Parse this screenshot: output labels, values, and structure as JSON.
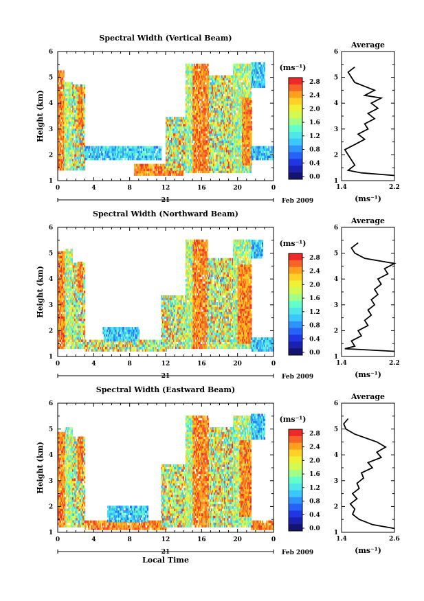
{
  "chart_data": [
    {
      "type": "heatmap",
      "title": "Spectral Width (Vertical Beam)",
      "ylabel": "Height (km)",
      "yticks": [
        "1",
        "2",
        "3",
        "4",
        "5",
        "6"
      ],
      "ylim": [
        1,
        6
      ],
      "xticks": [
        "0",
        "4",
        "8",
        "12",
        "16",
        "20",
        "0"
      ],
      "xlim": [
        0,
        24
      ],
      "date_day": "21",
      "date_month": "Feb 2009",
      "colorbar_unit": "(ms⁻¹)",
      "colorbar_ticks": [
        "2.8",
        "2.4",
        "2.0",
        "1.6",
        "1.2",
        "0.8",
        "0.4",
        "0.0"
      ],
      "colorbar_range": [
        0.0,
        3.0
      ],
      "data_top_km": 5.5,
      "data_bottom_km": 1.2,
      "regions": [
        {
          "t0": 0,
          "t1": 0.7,
          "h0": 1.4,
          "h1": 5.2,
          "level": "high"
        },
        {
          "t0": 0.7,
          "t1": 1.6,
          "h0": 1.4,
          "h1": 4.8,
          "level": "mid"
        },
        {
          "t0": 1.6,
          "t1": 3.0,
          "h0": 1.4,
          "h1": 4.7,
          "level": "mixed"
        },
        {
          "t0": 2.2,
          "t1": 2.7,
          "h0": 3.0,
          "h1": 4.6,
          "level": "high"
        },
        {
          "t0": 3.0,
          "t1": 11.5,
          "h0": 1.8,
          "h1": 2.3,
          "level": "low"
        },
        {
          "t0": 8.5,
          "t1": 14.0,
          "h0": 1.2,
          "h1": 1.6,
          "level": "high"
        },
        {
          "t0": 12.0,
          "t1": 14.2,
          "h0": 1.4,
          "h1": 3.4,
          "level": "mixed"
        },
        {
          "t0": 14.2,
          "t1": 15.0,
          "h0": 1.3,
          "h1": 5.5,
          "level": "mid"
        },
        {
          "t0": 15.0,
          "t1": 16.8,
          "h0": 1.3,
          "h1": 5.5,
          "level": "high"
        },
        {
          "t0": 16.8,
          "t1": 19.5,
          "h0": 1.3,
          "h1": 5.0,
          "level": "mixed"
        },
        {
          "t0": 19.5,
          "t1": 21.5,
          "h0": 1.3,
          "h1": 5.5,
          "level": "mid"
        },
        {
          "t0": 20.5,
          "t1": 21.5,
          "h0": 1.6,
          "h1": 4.2,
          "level": "high"
        },
        {
          "t0": 21.5,
          "t1": 24.0,
          "h0": 1.8,
          "h1": 2.3,
          "level": "low"
        },
        {
          "t0": 21.5,
          "t1": 23.0,
          "h0": 4.6,
          "h1": 5.5,
          "level": "low"
        }
      ],
      "average": {
        "title": "Average",
        "xlabel": "(ms⁻¹)",
        "xticks": [
          "1.4",
          "2.2"
        ],
        "xlim": [
          1.4,
          2.2
        ],
        "points": [
          [
            1.6,
            5.4
          ],
          [
            1.5,
            5.2
          ],
          [
            1.55,
            5.0
          ],
          [
            1.6,
            4.8
          ],
          [
            1.9,
            4.5
          ],
          [
            1.75,
            4.3
          ],
          [
            2.0,
            4.2
          ],
          [
            1.85,
            4.0
          ],
          [
            1.95,
            3.8
          ],
          [
            1.8,
            3.6
          ],
          [
            1.9,
            3.4
          ],
          [
            1.75,
            3.2
          ],
          [
            1.8,
            3.0
          ],
          [
            1.65,
            2.8
          ],
          [
            1.75,
            2.6
          ],
          [
            1.6,
            2.4
          ],
          [
            1.45,
            2.2
          ],
          [
            1.5,
            2.0
          ],
          [
            1.55,
            1.8
          ],
          [
            1.6,
            1.6
          ],
          [
            1.5,
            1.4
          ],
          [
            1.7,
            1.3
          ],
          [
            2.2,
            1.2
          ]
        ]
      }
    },
    {
      "type": "heatmap",
      "title": "Spectral Width (Northward Beam)",
      "ylabel": "Height (km)",
      "yticks": [
        "1",
        "2",
        "3",
        "4",
        "5",
        "6"
      ],
      "ylim": [
        1,
        6
      ],
      "xticks": [
        "0",
        "4",
        "8",
        "12",
        "16",
        "20",
        "0"
      ],
      "xlim": [
        0,
        24
      ],
      "date_day": "21",
      "date_month": "Feb 2009",
      "colorbar_unit": "(ms⁻¹)",
      "colorbar_ticks": [
        "2.8",
        "2.4",
        "2.0",
        "1.6",
        "1.2",
        "0.8",
        "0.4",
        "0.0"
      ],
      "colorbar_range": [
        0.0,
        3.0
      ],
      "data_top_km": 5.5,
      "data_bottom_km": 1.2,
      "regions": [
        {
          "t0": 0,
          "t1": 0.8,
          "h0": 1.3,
          "h1": 5.0,
          "level": "high"
        },
        {
          "t0": 0.8,
          "t1": 1.6,
          "h0": 1.3,
          "h1": 5.1,
          "level": "mid"
        },
        {
          "t0": 1.6,
          "t1": 3.0,
          "h0": 1.3,
          "h1": 4.6,
          "level": "mixed"
        },
        {
          "t0": 2.2,
          "t1": 2.7,
          "h0": 3.5,
          "h1": 4.6,
          "level": "high"
        },
        {
          "t0": 3.0,
          "t1": 12.0,
          "h0": 1.2,
          "h1": 1.6,
          "level": "mixed"
        },
        {
          "t0": 5.0,
          "t1": 9.0,
          "h0": 1.6,
          "h1": 2.1,
          "level": "low"
        },
        {
          "t0": 11.5,
          "t1": 14.2,
          "h0": 1.3,
          "h1": 3.3,
          "level": "mixed"
        },
        {
          "t0": 14.2,
          "t1": 15.0,
          "h0": 1.3,
          "h1": 5.5,
          "level": "mid"
        },
        {
          "t0": 15.0,
          "t1": 16.6,
          "h0": 1.3,
          "h1": 5.5,
          "level": "high"
        },
        {
          "t0": 16.6,
          "t1": 19.5,
          "h0": 1.3,
          "h1": 4.8,
          "level": "mixed"
        },
        {
          "t0": 19.5,
          "t1": 21.5,
          "h0": 1.3,
          "h1": 5.5,
          "level": "mid"
        },
        {
          "t0": 20.0,
          "t1": 21.5,
          "h0": 1.5,
          "h1": 4.5,
          "level": "high"
        },
        {
          "t0": 21.5,
          "t1": 24.0,
          "h0": 1.2,
          "h1": 1.7,
          "level": "low"
        },
        {
          "t0": 21.5,
          "t1": 22.8,
          "h0": 4.8,
          "h1": 5.5,
          "level": "low"
        }
      ],
      "average": {
        "title": "Average",
        "xlabel": "(ms⁻¹)",
        "xticks": [
          "1.4",
          "2.2"
        ],
        "xlim": [
          1.4,
          2.2
        ],
        "points": [
          [
            1.65,
            5.4
          ],
          [
            1.55,
            5.2
          ],
          [
            1.6,
            5.0
          ],
          [
            1.75,
            4.8
          ],
          [
            2.2,
            4.6
          ],
          [
            2.05,
            4.4
          ],
          [
            2.1,
            4.2
          ],
          [
            1.95,
            4.0
          ],
          [
            2.0,
            3.8
          ],
          [
            1.9,
            3.6
          ],
          [
            1.95,
            3.4
          ],
          [
            1.85,
            3.2
          ],
          [
            1.9,
            3.0
          ],
          [
            1.8,
            2.8
          ],
          [
            1.85,
            2.6
          ],
          [
            1.75,
            2.4
          ],
          [
            1.8,
            2.2
          ],
          [
            1.65,
            2.0
          ],
          [
            1.7,
            1.8
          ],
          [
            1.55,
            1.6
          ],
          [
            1.6,
            1.4
          ],
          [
            1.45,
            1.3
          ],
          [
            2.2,
            1.2
          ]
        ]
      }
    },
    {
      "type": "heatmap",
      "title": "Spectral Width (Eastward Beam)",
      "ylabel": "Height (km)",
      "yticks": [
        "1",
        "2",
        "3",
        "4",
        "5",
        "6"
      ],
      "ylim": [
        1,
        6
      ],
      "xticks": [
        "0",
        "4",
        "8",
        "12",
        "16",
        "20",
        "0"
      ],
      "xlim": [
        0,
        24
      ],
      "xlabel": "Local Time",
      "date_day": "21",
      "date_month": "Feb 2009",
      "colorbar_unit": "(ms⁻¹)",
      "colorbar_ticks": [
        "2.8",
        "2.4",
        "2.0",
        "1.6",
        "1.2",
        "0.8",
        "0.4",
        "0.0"
      ],
      "colorbar_range": [
        0.0,
        3.0
      ],
      "data_top_km": 5.5,
      "data_bottom_km": 1.1,
      "regions": [
        {
          "t0": 0,
          "t1": 0.8,
          "h0": 1.2,
          "h1": 4.8,
          "level": "high"
        },
        {
          "t0": 0.8,
          "t1": 1.6,
          "h0": 1.2,
          "h1": 5.0,
          "level": "mid"
        },
        {
          "t0": 1.6,
          "t1": 3.0,
          "h0": 1.2,
          "h1": 4.7,
          "level": "mixed"
        },
        {
          "t0": 2.2,
          "t1": 2.7,
          "h0": 3.0,
          "h1": 4.7,
          "level": "high"
        },
        {
          "t0": 3.0,
          "t1": 12.0,
          "h0": 1.1,
          "h1": 1.4,
          "level": "high"
        },
        {
          "t0": 5.5,
          "t1": 10.0,
          "h0": 1.4,
          "h1": 2.0,
          "level": "low"
        },
        {
          "t0": 11.5,
          "t1": 14.2,
          "h0": 1.2,
          "h1": 3.6,
          "level": "mixed"
        },
        {
          "t0": 14.2,
          "t1": 15.0,
          "h0": 1.2,
          "h1": 5.5,
          "level": "mid"
        },
        {
          "t0": 15.0,
          "t1": 16.8,
          "h0": 1.2,
          "h1": 5.5,
          "level": "high"
        },
        {
          "t0": 16.8,
          "t1": 19.5,
          "h0": 1.2,
          "h1": 5.0,
          "level": "mixed"
        },
        {
          "t0": 19.5,
          "t1": 21.5,
          "h0": 1.2,
          "h1": 5.5,
          "level": "mid"
        },
        {
          "t0": 20.2,
          "t1": 21.5,
          "h0": 1.6,
          "h1": 4.5,
          "level": "high"
        },
        {
          "t0": 21.5,
          "t1": 24.0,
          "h0": 1.1,
          "h1": 1.4,
          "level": "high"
        },
        {
          "t0": 21.5,
          "t1": 23.0,
          "h0": 4.6,
          "h1": 5.5,
          "level": "low"
        }
      ],
      "average": {
        "title": "Average",
        "xlabel": "(ms⁻¹)",
        "xticks": [
          "1.4",
          "2.6"
        ],
        "xlim": [
          1.4,
          2.6
        ],
        "points": [
          [
            1.55,
            5.4
          ],
          [
            1.45,
            5.2
          ],
          [
            1.5,
            5.0
          ],
          [
            1.7,
            4.8
          ],
          [
            2.2,
            4.5
          ],
          [
            2.4,
            4.3
          ],
          [
            2.2,
            4.1
          ],
          [
            2.3,
            3.9
          ],
          [
            2.0,
            3.7
          ],
          [
            2.1,
            3.5
          ],
          [
            1.85,
            3.3
          ],
          [
            1.9,
            3.1
          ],
          [
            1.75,
            2.9
          ],
          [
            1.8,
            2.7
          ],
          [
            1.65,
            2.5
          ],
          [
            1.75,
            2.3
          ],
          [
            1.6,
            2.1
          ],
          [
            1.7,
            1.9
          ],
          [
            1.65,
            1.7
          ],
          [
            1.8,
            1.5
          ],
          [
            2.1,
            1.3
          ],
          [
            2.6,
            1.15
          ]
        ]
      }
    }
  ]
}
